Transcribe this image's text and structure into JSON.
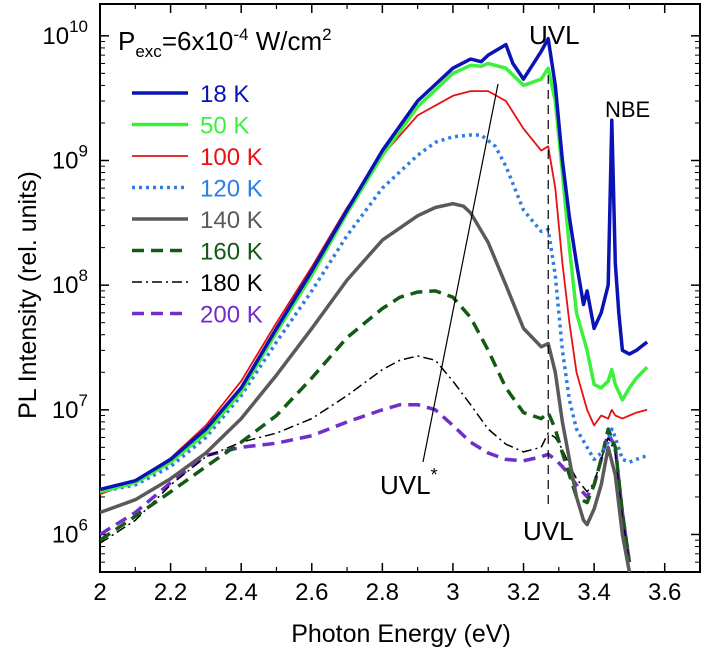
{
  "chart_data": {
    "type": "line",
    "title": "",
    "xlabel": "Photon Energy (eV)",
    "ylabel": "PL Intensity (rel. units)",
    "xlim": [
      2.0,
      3.7
    ],
    "ylim": [
      500000,
      18000000000
    ],
    "y_scale": "log",
    "x_ticks": [
      "2",
      "2.2",
      "2.4",
      "2.6",
      "2.8",
      "3",
      "3.2",
      "3.4",
      "3.6"
    ],
    "y_ticks": [
      {
        "base": "10",
        "exp": "6",
        "value": 1000000
      },
      {
        "base": "10",
        "exp": "7",
        "value": 10000000
      },
      {
        "base": "10",
        "exp": "8",
        "value": 100000000
      },
      {
        "base": "10",
        "exp": "9",
        "value": 1000000000
      },
      {
        "base": "10",
        "exp": "10",
        "value": 10000000000
      }
    ],
    "legend_placement": "top-left",
    "annotations": {
      "pexc_main": "P",
      "pexc_sub": "exc",
      "pexc_mid": "=6x10",
      "pexc_exp": "-4",
      "pexc_unit": " W/cm",
      "pexc_unit_exp": "2",
      "uvl_top": "UVL",
      "nbe": "NBE",
      "uvl_bottom": "UVL",
      "uvl_star": "UVL",
      "uvl_star_sup": "*"
    },
    "series": [
      {
        "name": "18 K",
        "color": "#0a14b4",
        "style": "solid",
        "width": 3.5,
        "x": [
          2.0,
          2.1,
          2.2,
          2.3,
          2.4,
          2.5,
          2.6,
          2.7,
          2.8,
          2.9,
          3.0,
          3.05,
          3.08,
          3.1,
          3.15,
          3.17,
          3.2,
          3.25,
          3.27,
          3.29,
          3.31,
          3.33,
          3.35,
          3.37,
          3.38,
          3.4,
          3.42,
          3.44,
          3.45,
          3.46,
          3.47,
          3.48,
          3.5,
          3.52,
          3.55
        ],
        "y": [
          2300000,
          2700000,
          4000000,
          7000000,
          15000000,
          45000000,
          130000000,
          400000000,
          1200000000,
          3000000000,
          5500000000,
          6500000000,
          6200000000,
          7000000000,
          8500000000,
          6000000000,
          4500000000,
          7500000000,
          9500000000,
          4000000000,
          1000000000,
          350000000,
          150000000,
          70000000,
          90000000,
          45000000,
          60000000,
          100000000,
          2100000000,
          150000000,
          60000000,
          30000000,
          28000000,
          30000000,
          35000000
        ]
      },
      {
        "name": "50 K",
        "color": "#3cf03c",
        "style": "solid",
        "width": 3.5,
        "x": [
          2.0,
          2.1,
          2.2,
          2.3,
          2.4,
          2.5,
          2.6,
          2.7,
          2.8,
          2.9,
          3.0,
          3.05,
          3.08,
          3.1,
          3.15,
          3.2,
          3.25,
          3.27,
          3.29,
          3.31,
          3.33,
          3.35,
          3.38,
          3.4,
          3.42,
          3.44,
          3.45,
          3.46,
          3.48,
          3.5,
          3.52,
          3.55
        ],
        "y": [
          2200000,
          2600000,
          3800000,
          6500000,
          14000000,
          42000000,
          120000000,
          380000000,
          1100000000,
          2700000000,
          5000000000,
          5800000000,
          5700000000,
          6000000000,
          5500000000,
          4000000000,
          4500000000,
          5500000000,
          3000000000,
          800000000,
          200000000,
          60000000,
          30000000,
          16000000,
          15000000,
          17000000,
          21000000,
          16000000,
          12000000,
          15000000,
          18000000,
          22000000
        ]
      },
      {
        "name": "100 K",
        "color": "#e81010",
        "style": "solid",
        "width": 1.8,
        "x": [
          2.0,
          2.1,
          2.2,
          2.3,
          2.4,
          2.5,
          2.6,
          2.7,
          2.8,
          2.9,
          3.0,
          3.05,
          3.1,
          3.15,
          3.2,
          3.25,
          3.27,
          3.29,
          3.31,
          3.33,
          3.35,
          3.38,
          3.4,
          3.42,
          3.44,
          3.45,
          3.46,
          3.48,
          3.5,
          3.52,
          3.55
        ],
        "y": [
          2100000,
          2700000,
          4100000,
          7500000,
          17000000,
          50000000,
          140000000,
          420000000,
          1100000000,
          2300000000,
          3300000000,
          3600000000,
          3600000000,
          3000000000,
          1800000000,
          1200000000,
          1300000000,
          600000000,
          150000000,
          50000000,
          20000000,
          10000000,
          7500000,
          9000000,
          8500000,
          10000000,
          9000000,
          8500000,
          9000000,
          9500000,
          10000000
        ]
      },
      {
        "name": "120 K",
        "color": "#2e7de6",
        "style": "dot",
        "width": 3.5,
        "x": [
          2.0,
          2.1,
          2.2,
          2.3,
          2.4,
          2.5,
          2.6,
          2.7,
          2.8,
          2.9,
          2.95,
          3.0,
          3.05,
          3.08,
          3.12,
          3.15,
          3.2,
          3.25,
          3.27,
          3.29,
          3.31,
          3.33,
          3.35,
          3.38,
          3.4,
          3.42,
          3.44,
          3.45,
          3.46,
          3.48,
          3.5,
          3.52,
          3.55
        ],
        "y": [
          2200000,
          2500000,
          3500000,
          6000000,
          13000000,
          35000000,
          90000000,
          250000000,
          600000000,
          1100000000,
          1400000000,
          1550000000,
          1600000000,
          1600000000,
          1300000000,
          900000000,
          400000000,
          270000000,
          280000000,
          120000000,
          30000000,
          12000000,
          7000000,
          5000000,
          4000000,
          4500000,
          5500000,
          7000000,
          6000000,
          4000000,
          3800000,
          4000000,
          4300000
        ]
      },
      {
        "name": "140 K",
        "color": "#5a5a5a",
        "style": "solid",
        "width": 3.5,
        "x": [
          2.0,
          2.1,
          2.2,
          2.3,
          2.4,
          2.5,
          2.6,
          2.7,
          2.8,
          2.9,
          2.95,
          3.0,
          3.03,
          3.05,
          3.1,
          3.15,
          3.2,
          3.25,
          3.27,
          3.29,
          3.31,
          3.33,
          3.35,
          3.37,
          3.38,
          3.4,
          3.42,
          3.44,
          3.46,
          3.48,
          3.5,
          3.52,
          3.55
        ],
        "y": [
          1500000,
          1900000,
          2800000,
          4500000,
          8500000,
          19000000,
          45000000,
          110000000,
          230000000,
          360000000,
          420000000,
          450000000,
          430000000,
          380000000,
          220000000,
          100000000,
          45000000,
          32000000,
          34000000,
          20000000,
          8000000,
          4000000,
          2000000,
          1300000,
          1200000,
          1600000,
          2500000,
          5000000,
          3000000,
          1000000,
          500000,
          400000,
          500000
        ]
      },
      {
        "name": "160 K",
        "color": "#145a14",
        "style": "dash",
        "width": 3.5,
        "x": [
          2.0,
          2.1,
          2.2,
          2.3,
          2.4,
          2.5,
          2.6,
          2.7,
          2.8,
          2.85,
          2.9,
          2.95,
          3.0,
          3.05,
          3.1,
          3.15,
          3.2,
          3.25,
          3.27,
          3.29,
          3.31,
          3.33,
          3.35,
          3.38,
          3.4,
          3.42,
          3.44,
          3.46,
          3.48,
          3.5
        ],
        "y": [
          900000,
          1400000,
          2200000,
          3500000,
          5500000,
          9000000,
          18000000,
          38000000,
          65000000,
          80000000,
          88000000,
          90000000,
          80000000,
          55000000,
          30000000,
          15000000,
          9500000,
          8500000,
          9500000,
          7000000,
          4500000,
          3000000,
          2000000,
          1800000,
          2500000,
          4000000,
          7000000,
          5000000,
          1500000,
          600000
        ]
      },
      {
        "name": "180 K",
        "color": "#000000",
        "style": "dashdot",
        "width": 1.5,
        "x": [
          2.0,
          2.1,
          2.2,
          2.3,
          2.4,
          2.5,
          2.6,
          2.7,
          2.8,
          2.85,
          2.9,
          2.95,
          3.0,
          3.05,
          3.1,
          3.15,
          3.2,
          3.25,
          3.27,
          3.29,
          3.31,
          3.33,
          3.35,
          3.38,
          3.4,
          3.42,
          3.44,
          3.46,
          3.48,
          3.5
        ],
        "y": [
          850000,
          1300000,
          2500000,
          4200000,
          5500000,
          6500000,
          8500000,
          13000000,
          21000000,
          25000000,
          27000000,
          25000000,
          17000000,
          11000000,
          7000000,
          5300000,
          4600000,
          5000000,
          6500000,
          6000000,
          4800000,
          3600000,
          2800000,
          2200000,
          2600000,
          4000000,
          6000000,
          4500000,
          1400000,
          600000
        ]
      },
      {
        "name": "200 K",
        "color": "#7030c8",
        "style": "dash",
        "width": 3.5,
        "x": [
          2.0,
          2.1,
          2.2,
          2.3,
          2.4,
          2.5,
          2.6,
          2.7,
          2.8,
          2.85,
          2.9,
          2.95,
          3.0,
          3.05,
          3.1,
          3.15,
          3.2,
          3.25,
          3.27,
          3.29,
          3.31,
          3.33,
          3.35,
          3.38,
          3.4,
          3.42,
          3.44,
          3.46,
          3.48,
          3.5
        ],
        "y": [
          1000000,
          1500000,
          2600000,
          4300000,
          5000000,
          5400000,
          6200000,
          8000000,
          10000000,
          11000000,
          11000000,
          10000000,
          7500000,
          5500000,
          4500000,
          4000000,
          3900000,
          4200000,
          4400000,
          4000000,
          3500000,
          3000000,
          2500000,
          2000000,
          2500000,
          4000000,
          6500000,
          5000000,
          1500000,
          600000
        ]
      }
    ]
  }
}
